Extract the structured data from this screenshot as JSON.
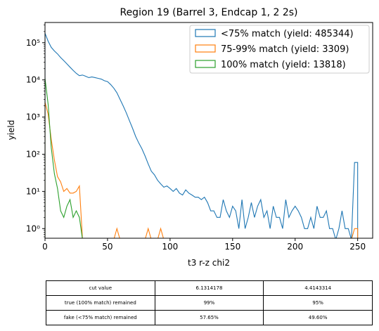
{
  "chart_data": {
    "type": "histogram",
    "title": "Region 19 (Barrel 3, Endcap 1, 2 2s)",
    "xlabel": "t3 r-z chi2",
    "ylabel": "yield",
    "xlim": [
      0,
      262
    ],
    "ylim": [
      0.55,
      350000
    ],
    "yscale": "log",
    "bin_edges_start": 0,
    "bin_width": 2.5,
    "x_ticks": [
      0,
      50,
      100,
      150,
      200,
      250
    ],
    "x_tick_labels": [
      "0",
      "50",
      "100",
      "150",
      "200",
      "250"
    ],
    "y_ticks": [
      1,
      10,
      100,
      1000,
      10000,
      100000
    ],
    "y_tick_labels": [
      "10⁰",
      "10¹",
      "10²",
      "10³",
      "10⁴",
      "10⁵"
    ],
    "legend_position": "top-right",
    "series": [
      {
        "name": "<75% match (yield: 485344)",
        "color": "#1f77b4",
        "counts": [
          180000,
          110000,
          75000,
          60000,
          50000,
          40000,
          33000,
          27000,
          22000,
          18000,
          15000,
          13000,
          13500,
          12500,
          11500,
          12000,
          11500,
          11000,
          10500,
          9500,
          9000,
          7500,
          6000,
          4500,
          3000,
          2000,
          1300,
          800,
          500,
          300,
          200,
          140,
          90,
          55,
          35,
          28,
          20,
          16,
          13,
          14,
          12,
          10,
          12,
          9,
          8,
          11,
          9,
          8,
          7,
          7,
          6,
          7,
          5,
          3,
          3,
          2,
          2,
          6,
          3,
          2,
          4,
          3,
          1,
          6,
          1,
          2,
          5,
          2,
          4,
          6,
          2,
          3,
          1,
          4,
          2,
          2,
          1,
          6,
          2,
          3,
          4,
          3,
          2,
          1,
          1,
          2,
          1,
          4,
          2,
          2,
          3,
          1,
          1,
          0,
          1,
          3,
          1,
          1,
          0,
          60
        ]
      },
      {
        "name": "75-99% match (yield: 3309)",
        "color": "#ff7f0e",
        "counts": [
          2500,
          1200,
          250,
          70,
          25,
          18,
          10,
          12,
          9,
          9,
          10,
          14,
          0,
          0,
          0,
          0,
          0,
          0,
          0,
          0,
          0,
          0,
          0,
          1,
          0,
          0,
          0,
          0,
          0,
          0,
          0,
          0,
          0,
          1,
          0,
          0,
          0,
          1,
          0,
          0,
          0,
          0,
          0,
          0,
          0,
          0,
          0,
          0,
          0,
          0,
          0,
          0,
          0,
          0,
          0,
          0,
          0,
          0,
          0,
          0,
          0,
          0,
          0,
          0,
          0,
          0,
          0,
          0,
          0,
          0,
          0,
          0,
          0,
          0,
          0,
          0,
          0,
          0,
          0,
          0,
          0,
          0,
          0,
          0,
          0,
          0,
          0,
          0,
          0,
          0,
          0,
          0,
          0,
          0,
          0,
          0,
          0,
          0,
          0,
          1
        ]
      },
      {
        "name": "100% match (yield: 13818)",
        "color": "#2ca02c",
        "counts": [
          11000,
          2200,
          150,
          30,
          12,
          3,
          2,
          4,
          6,
          2,
          3,
          2,
          0,
          0,
          0,
          0,
          0,
          0,
          0,
          0,
          0,
          0,
          0,
          0,
          0,
          0,
          0,
          0,
          0,
          0,
          0,
          0,
          0,
          0,
          0,
          0,
          0,
          0,
          0,
          0,
          0,
          0,
          0,
          0,
          0,
          0,
          0,
          0,
          0,
          0,
          0,
          0,
          0,
          0,
          0,
          0,
          0,
          0,
          0,
          0,
          0,
          0,
          0,
          0,
          0,
          0,
          0,
          0,
          0,
          0,
          0,
          0,
          0,
          0,
          0,
          0,
          0,
          0,
          0,
          0,
          0,
          0,
          0,
          0,
          0,
          0,
          0,
          0,
          0,
          0,
          0,
          0,
          0,
          0,
          0,
          0,
          0,
          0,
          0,
          0
        ]
      }
    ]
  },
  "table": {
    "rows": [
      [
        "cut value",
        "6.1314178",
        "4.4143314"
      ],
      [
        "true (100% match) remained",
        "99%",
        "95%"
      ],
      [
        "fake (<75% match) remained",
        "57.65%",
        "49.60%"
      ]
    ]
  }
}
